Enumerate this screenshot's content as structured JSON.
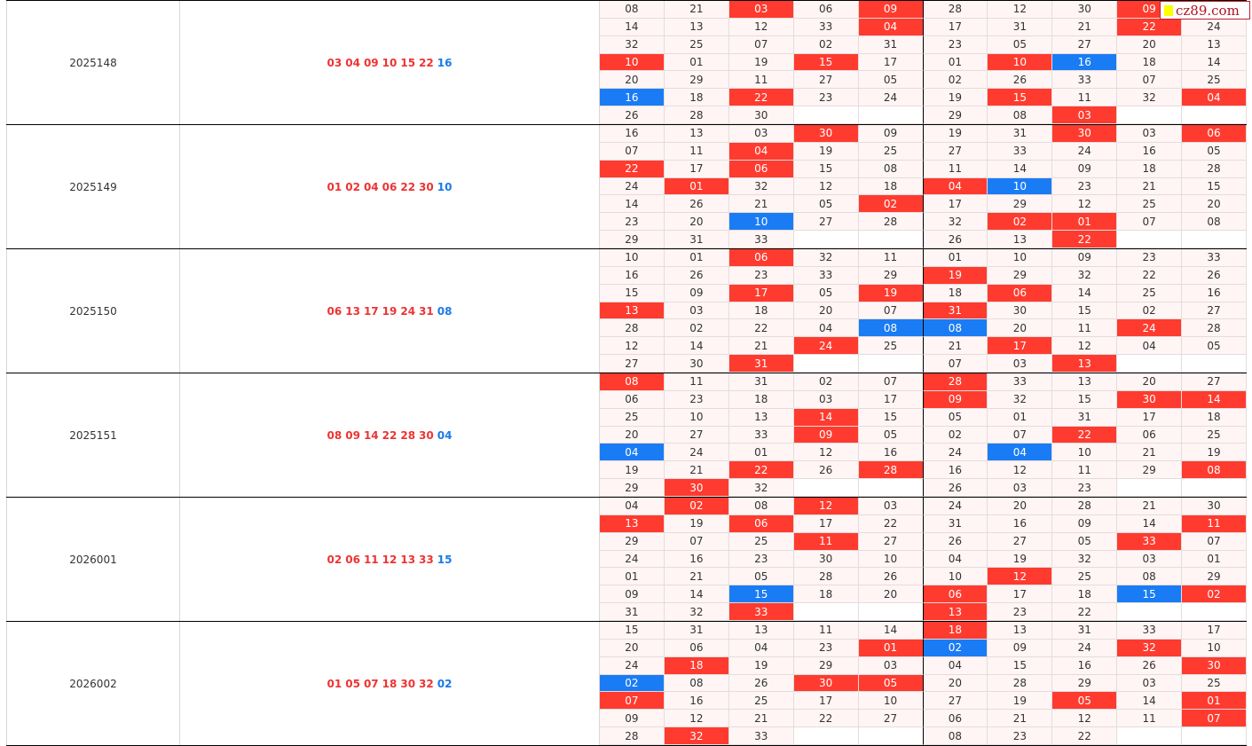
{
  "logo": "cz89.com",
  "colors": {
    "red": "#ff3b2f",
    "blue": "#1a7cf5"
  },
  "blocks": [
    {
      "issue": "2025148",
      "red": [
        "03",
        "04",
        "09",
        "10",
        "15",
        "22"
      ],
      "blue": "16",
      "grid": [
        [
          "08",
          "21",
          "03",
          "06",
          "09",
          "28",
          "12",
          "30",
          "09",
          ""
        ],
        [
          "14",
          "13",
          "12",
          "33",
          "04",
          "17",
          "31",
          "21",
          "22",
          "24"
        ],
        [
          "32",
          "25",
          "07",
          "02",
          "31",
          "23",
          "05",
          "27",
          "20",
          "13"
        ],
        [
          "10",
          "01",
          "19",
          "15",
          "17",
          "01",
          "10",
          "16",
          "18",
          "14"
        ],
        [
          "20",
          "29",
          "11",
          "27",
          "05",
          "02",
          "26",
          "33",
          "07",
          "25"
        ],
        [
          "16",
          "18",
          "22",
          "23",
          "24",
          "19",
          "15",
          "11",
          "32",
          "04"
        ],
        [
          "26",
          "28",
          "30",
          "",
          "",
          "29",
          "08",
          "03",
          "",
          ""
        ]
      ]
    },
    {
      "issue": "2025149",
      "red": [
        "01",
        "02",
        "04",
        "06",
        "22",
        "30"
      ],
      "blue": "10",
      "grid": [
        [
          "16",
          "13",
          "03",
          "30",
          "09",
          "19",
          "31",
          "30",
          "03",
          "06"
        ],
        [
          "07",
          "11",
          "04",
          "19",
          "25",
          "27",
          "33",
          "24",
          "16",
          "05"
        ],
        [
          "22",
          "17",
          "06",
          "15",
          "08",
          "11",
          "14",
          "09",
          "18",
          "28"
        ],
        [
          "24",
          "01",
          "32",
          "12",
          "18",
          "04",
          "10",
          "23",
          "21",
          "15"
        ],
        [
          "14",
          "26",
          "21",
          "05",
          "02",
          "17",
          "29",
          "12",
          "25",
          "20"
        ],
        [
          "23",
          "20",
          "10",
          "27",
          "28",
          "32",
          "02",
          "01",
          "07",
          "08"
        ],
        [
          "29",
          "31",
          "33",
          "",
          "",
          "26",
          "13",
          "22",
          "",
          ""
        ]
      ]
    },
    {
      "issue": "2025150",
      "red": [
        "06",
        "13",
        "17",
        "19",
        "24",
        "31"
      ],
      "blue": "08",
      "grid": [
        [
          "10",
          "01",
          "06",
          "32",
          "11",
          "01",
          "10",
          "09",
          "23",
          "33"
        ],
        [
          "16",
          "26",
          "23",
          "33",
          "29",
          "19",
          "29",
          "32",
          "22",
          "26"
        ],
        [
          "15",
          "09",
          "17",
          "05",
          "19",
          "18",
          "06",
          "14",
          "25",
          "16"
        ],
        [
          "13",
          "03",
          "18",
          "20",
          "07",
          "31",
          "30",
          "15",
          "02",
          "27"
        ],
        [
          "28",
          "02",
          "22",
          "04",
          "08",
          "08",
          "20",
          "11",
          "24",
          "28"
        ],
        [
          "12",
          "14",
          "21",
          "24",
          "25",
          "21",
          "17",
          "12",
          "04",
          "05"
        ],
        [
          "27",
          "30",
          "31",
          "",
          "",
          "07",
          "03",
          "13",
          "",
          ""
        ]
      ]
    },
    {
      "issue": "2025151",
      "red": [
        "08",
        "09",
        "14",
        "22",
        "28",
        "30"
      ],
      "blue": "04",
      "grid": [
        [
          "08",
          "11",
          "31",
          "02",
          "07",
          "28",
          "33",
          "13",
          "20",
          "27"
        ],
        [
          "06",
          "23",
          "18",
          "03",
          "17",
          "09",
          "32",
          "15",
          "30",
          "14"
        ],
        [
          "25",
          "10",
          "13",
          "14",
          "15",
          "05",
          "01",
          "31",
          "17",
          "18"
        ],
        [
          "20",
          "27",
          "33",
          "09",
          "05",
          "02",
          "07",
          "22",
          "06",
          "25"
        ],
        [
          "04",
          "24",
          "01",
          "12",
          "16",
          "24",
          "04",
          "10",
          "21",
          "19"
        ],
        [
          "19",
          "21",
          "22",
          "26",
          "28",
          "16",
          "12",
          "11",
          "29",
          "08"
        ],
        [
          "29",
          "30",
          "32",
          "",
          "",
          "26",
          "03",
          "23",
          "",
          ""
        ]
      ]
    },
    {
      "issue": "2026001",
      "red": [
        "02",
        "06",
        "11",
        "12",
        "13",
        "33"
      ],
      "blue": "15",
      "grid": [
        [
          "04",
          "02",
          "08",
          "12",
          "03",
          "24",
          "20",
          "28",
          "21",
          "30"
        ],
        [
          "13",
          "19",
          "06",
          "17",
          "22",
          "31",
          "16",
          "09",
          "14",
          "11"
        ],
        [
          "29",
          "07",
          "25",
          "11",
          "27",
          "26",
          "27",
          "05",
          "33",
          "07"
        ],
        [
          "24",
          "16",
          "23",
          "30",
          "10",
          "04",
          "19",
          "32",
          "03",
          "01"
        ],
        [
          "01",
          "21",
          "05",
          "28",
          "26",
          "10",
          "12",
          "25",
          "08",
          "29"
        ],
        [
          "09",
          "14",
          "15",
          "18",
          "20",
          "06",
          "17",
          "18",
          "15",
          "02"
        ],
        [
          "31",
          "32",
          "33",
          "",
          "",
          "13",
          "23",
          "22",
          "",
          ""
        ]
      ]
    },
    {
      "issue": "2026002",
      "red": [
        "01",
        "05",
        "07",
        "18",
        "30",
        "32"
      ],
      "blue": "02",
      "grid": [
        [
          "15",
          "31",
          "13",
          "11",
          "14",
          "18",
          "13",
          "31",
          "33",
          "17"
        ],
        [
          "20",
          "06",
          "04",
          "23",
          "01",
          "02",
          "09",
          "24",
          "32",
          "10"
        ],
        [
          "24",
          "18",
          "19",
          "29",
          "03",
          "04",
          "15",
          "16",
          "26",
          "30"
        ],
        [
          "02",
          "08",
          "26",
          "30",
          "05",
          "20",
          "28",
          "29",
          "03",
          "25"
        ],
        [
          "07",
          "16",
          "25",
          "17",
          "10",
          "27",
          "19",
          "05",
          "14",
          "01"
        ],
        [
          "09",
          "12",
          "21",
          "22",
          "27",
          "06",
          "21",
          "12",
          "11",
          "07"
        ],
        [
          "28",
          "32",
          "33",
          "",
          "",
          "08",
          "23",
          "22",
          "",
          ""
        ]
      ]
    }
  ]
}
